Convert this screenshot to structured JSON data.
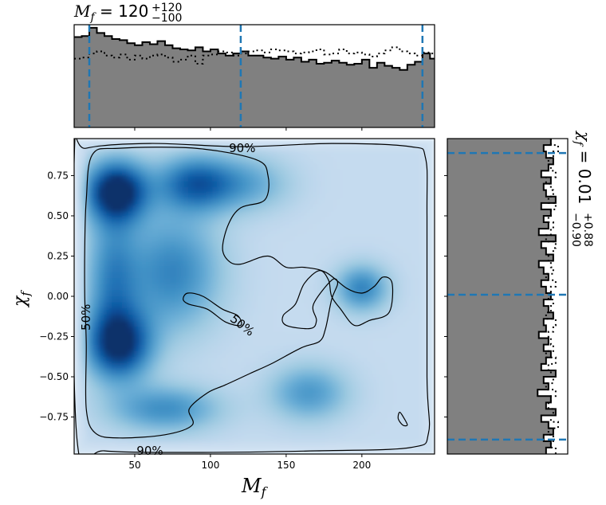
{
  "chart_data": [
    {
      "id": "top-marginal",
      "type": "histogram",
      "variable": "M_f",
      "title": "M_f = 120 +120 -100",
      "title_parts": {
        "symbol": "M",
        "sub": "f",
        "eq": " = ",
        "value": "120",
        "upper": "+120",
        "lower": "−100"
      },
      "xlim": [
        10,
        248
      ],
      "ylim": [
        0,
        1.0
      ],
      "quantile_lines": [
        20,
        120,
        240
      ],
      "bin_edges": [
        10,
        15,
        20,
        25,
        30,
        35,
        40,
        45,
        50,
        55,
        60,
        65,
        70,
        75,
        80,
        85,
        90,
        95,
        100,
        105,
        110,
        115,
        120,
        125,
        130,
        135,
        140,
        145,
        150,
        155,
        160,
        165,
        170,
        175,
        180,
        185,
        190,
        195,
        200,
        205,
        210,
        215,
        220,
        225,
        230,
        235,
        240,
        245,
        248
      ],
      "filled_step": [
        0.88,
        0.89,
        0.97,
        0.92,
        0.89,
        0.86,
        0.85,
        0.82,
        0.8,
        0.83,
        0.81,
        0.84,
        0.8,
        0.77,
        0.76,
        0.75,
        0.78,
        0.74,
        0.76,
        0.72,
        0.7,
        0.72,
        0.74,
        0.7,
        0.7,
        0.68,
        0.67,
        0.69,
        0.66,
        0.68,
        0.64,
        0.66,
        0.62,
        0.63,
        0.65,
        0.63,
        0.61,
        0.62,
        0.66,
        0.58,
        0.63,
        0.6,
        0.58,
        0.56,
        0.61,
        0.64,
        0.72,
        0.67
      ],
      "dotted_step": [
        0.67,
        0.68,
        0.72,
        0.74,
        0.7,
        0.68,
        0.71,
        0.66,
        0.7,
        0.67,
        0.7,
        0.71,
        0.68,
        0.64,
        0.66,
        0.7,
        0.62,
        0.7,
        0.71,
        0.74,
        0.73,
        0.7,
        0.72,
        0.74,
        0.75,
        0.73,
        0.76,
        0.75,
        0.74,
        0.72,
        0.73,
        0.74,
        0.76,
        0.71,
        0.72,
        0.76,
        0.72,
        0.73,
        0.71,
        0.69,
        0.72,
        0.75,
        0.78,
        0.74,
        0.72,
        0.7,
        0.73,
        0.72
      ]
    },
    {
      "id": "main-density",
      "type": "heatmap",
      "xlabel_parts": {
        "symbol": "M",
        "sub": "f"
      },
      "ylabel_parts": {
        "symbol": "χ",
        "sub": "f"
      },
      "xlim": [
        10,
        248
      ],
      "ylim": [
        -0.98,
        0.98
      ],
      "xticks": [
        50,
        100,
        150,
        200
      ],
      "yticks": [
        -0.75,
        -0.5,
        -0.25,
        0.0,
        0.25,
        0.5,
        0.75
      ],
      "ytick_labels": [
        "−0.75",
        "−0.50",
        "−0.25",
        "0.00",
        "0.25",
        "0.50",
        "0.75"
      ],
      "colormap": "Blues",
      "density_blobs": [
        {
          "x": 38,
          "y": 0.65,
          "w": 1.0,
          "sx": 14,
          "sy": 0.13
        },
        {
          "x": 40,
          "y": -0.3,
          "w": 0.85,
          "sx": 15,
          "sy": 0.15
        },
        {
          "x": 90,
          "y": 0.7,
          "w": 0.65,
          "sx": 18,
          "sy": 0.12
        },
        {
          "x": 75,
          "y": 0.15,
          "w": 0.5,
          "sx": 22,
          "sy": 0.25
        },
        {
          "x": 70,
          "y": -0.7,
          "w": 0.45,
          "sx": 25,
          "sy": 0.1
        },
        {
          "x": 200,
          "y": 0.05,
          "w": 0.5,
          "sx": 12,
          "sy": 0.1
        },
        {
          "x": 165,
          "y": -0.6,
          "w": 0.4,
          "sx": 18,
          "sy": 0.12
        },
        {
          "x": 125,
          "y": 0.7,
          "w": 0.3,
          "sx": 20,
          "sy": 0.12
        },
        {
          "x": 35,
          "y": 0.1,
          "w": 0.45,
          "sx": 12,
          "sy": 0.3
        }
      ],
      "contours": [
        {
          "level": "90%",
          "label": "90%",
          "label_positions": [
            [
              121,
              0.92
            ],
            [
              60,
              -0.96
            ]
          ]
        },
        {
          "level": "50%",
          "label": "50%",
          "label_positions": [
            [
              18,
              -0.13
            ],
            [
              121,
              -0.18
            ]
          ]
        }
      ],
      "contour_90": [
        [
          10,
          0.84
        ],
        [
          18,
          0.92
        ],
        [
          60,
          0.95
        ],
        [
          121,
          0.93
        ],
        [
          180,
          0.95
        ],
        [
          232,
          0.93
        ],
        [
          242,
          0.86
        ],
        [
          243,
          0.5
        ],
        [
          243,
          -0.5
        ],
        [
          244,
          -0.85
        ],
        [
          232,
          -0.94
        ],
        [
          170,
          -0.96
        ],
        [
          90,
          -0.97
        ],
        [
          30,
          -0.96
        ],
        [
          12,
          -0.9
        ]
      ],
      "contour_50": [
        [
          18,
          0.6
        ],
        [
          22,
          0.88
        ],
        [
          40,
          0.92
        ],
        [
          90,
          0.92
        ],
        [
          130,
          0.85
        ],
        [
          138,
          0.75
        ],
        [
          136,
          0.6
        ],
        [
          120,
          0.55
        ],
        [
          112,
          0.45
        ],
        [
          108,
          0.3
        ],
        [
          112,
          0.22
        ],
        [
          120,
          0.2
        ],
        [
          138,
          0.25
        ],
        [
          150,
          0.18
        ],
        [
          162,
          0.18
        ],
        [
          176,
          0.15
        ],
        [
          190,
          0.05
        ],
        [
          200,
          0.02
        ],
        [
          208,
          0.06
        ],
        [
          214,
          0.12
        ],
        [
          220,
          0.08
        ],
        [
          218,
          -0.1
        ],
        [
          205,
          -0.15
        ],
        [
          195,
          -0.18
        ],
        [
          186,
          -0.08
        ],
        [
          180,
          0.0
        ],
        [
          178,
          0.1
        ],
        [
          172,
          0.16
        ],
        [
          162,
          0.08
        ],
        [
          156,
          -0.05
        ],
        [
          148,
          -0.12
        ],
        [
          150,
          -0.18
        ],
        [
          166,
          -0.2
        ],
        [
          170,
          -0.15
        ],
        [
          168,
          -0.05
        ],
        [
          180,
          0.1
        ],
        [
          184,
          0.08
        ],
        [
          180,
          -0.02
        ],
        [
          176,
          -0.2
        ],
        [
          172,
          -0.28
        ],
        [
          160,
          -0.32
        ],
        [
          140,
          -0.42
        ],
        [
          126,
          -0.48
        ],
        [
          110,
          -0.55
        ],
        [
          98,
          -0.6
        ],
        [
          86,
          -0.7
        ],
        [
          88,
          -0.8
        ],
        [
          70,
          -0.86
        ],
        [
          40,
          -0.88
        ],
        [
          24,
          -0.85
        ],
        [
          18,
          -0.7
        ],
        [
          18,
          -0.3
        ],
        [
          17,
          0.0
        ],
        [
          17,
          0.3
        ]
      ],
      "contour_small_a": [
        [
          85,
          0.02
        ],
        [
          95,
          0.0
        ],
        [
          108,
          -0.08
        ],
        [
          118,
          -0.12
        ],
        [
          120,
          -0.18
        ],
        [
          110,
          -0.16
        ],
        [
          98,
          -0.08
        ],
        [
          86,
          -0.05
        ],
        [
          82,
          -0.02
        ]
      ],
      "contour_small_b": [
        [
          225,
          -0.72
        ],
        [
          228,
          -0.76
        ],
        [
          230,
          -0.8
        ],
        [
          227,
          -0.8
        ],
        [
          224,
          -0.76
        ]
      ]
    },
    {
      "id": "right-marginal",
      "type": "histogram",
      "orientation": "horizontal",
      "variable": "chi_f",
      "title": "chi_f = 0.01 +0.88 -0.90",
      "title_parts": {
        "symbol": "χ",
        "sub": "f",
        "eq": " = ",
        "value": "0.01",
        "upper": "+0.88",
        "lower": "−0.90"
      },
      "ylim": [
        -0.98,
        0.98
      ],
      "xlim": [
        0,
        1.0
      ],
      "quantile_lines": [
        -0.89,
        0.01,
        0.89
      ],
      "bin_edges": [
        -0.98,
        -0.94,
        -0.9,
        -0.86,
        -0.82,
        -0.78,
        -0.74,
        -0.7,
        -0.66,
        -0.62,
        -0.58,
        -0.54,
        -0.5,
        -0.46,
        -0.42,
        -0.38,
        -0.34,
        -0.3,
        -0.26,
        -0.22,
        -0.18,
        -0.14,
        -0.1,
        -0.06,
        -0.02,
        0.02,
        0.06,
        0.1,
        0.14,
        0.18,
        0.22,
        0.26,
        0.3,
        0.34,
        0.38,
        0.42,
        0.46,
        0.5,
        0.54,
        0.58,
        0.62,
        0.66,
        0.7,
        0.74,
        0.78,
        0.82,
        0.86,
        0.9,
        0.94,
        0.98
      ],
      "filled_step": [
        0.82,
        0.86,
        0.8,
        0.88,
        0.84,
        0.78,
        0.9,
        0.82,
        0.86,
        0.75,
        0.84,
        0.8,
        0.9,
        0.78,
        0.82,
        0.86,
        0.8,
        0.84,
        0.76,
        0.82,
        0.8,
        0.88,
        0.84,
        0.8,
        0.86,
        0.82,
        0.78,
        0.84,
        0.8,
        0.76,
        0.88,
        0.82,
        0.78,
        0.9,
        0.76,
        0.84,
        0.8,
        0.86,
        0.78,
        0.9,
        0.82,
        0.8,
        0.86,
        0.78,
        0.84,
        0.88,
        0.82,
        0.8,
        0.86
      ],
      "dotted_step": [
        0.9,
        0.86,
        0.88,
        0.84,
        0.92,
        0.86,
        0.88,
        0.84,
        0.86,
        0.9,
        0.82,
        0.88,
        0.86,
        0.84,
        0.9,
        0.82,
        0.88,
        0.86,
        0.84,
        0.88,
        0.9,
        0.82,
        0.86,
        0.88,
        0.84,
        0.86,
        0.9,
        0.82,
        0.88,
        0.86,
        0.84,
        0.88,
        0.9,
        0.82,
        0.86,
        0.88,
        0.84,
        0.86,
        0.9,
        0.84,
        0.88,
        0.86,
        0.82,
        0.9,
        0.86,
        0.84,
        0.88,
        0.92,
        0.86
      ]
    }
  ]
}
